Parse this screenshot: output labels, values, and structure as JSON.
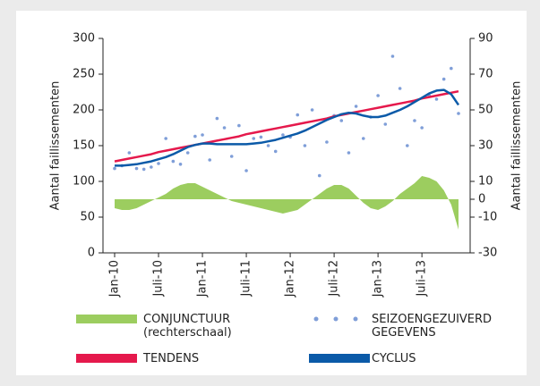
{
  "chart_data": {
    "type": "line",
    "y_label": "Aantal faillissementen",
    "y2_label": "Aantal faillissementen",
    "categories": [
      "Jan-10",
      null,
      null,
      null,
      null,
      null,
      "Juli-10",
      null,
      null,
      null,
      null,
      null,
      "Jan-11",
      null,
      null,
      null,
      null,
      null,
      "Juli-11",
      null,
      null,
      null,
      null,
      null,
      "Jan-12",
      null,
      null,
      null,
      null,
      null,
      "Juli-12",
      null,
      null,
      null,
      null,
      null,
      "Jan-13",
      null,
      null,
      null,
      null,
      null,
      "Juli-13",
      null,
      null,
      null,
      null,
      null
    ],
    "ylim": [
      0,
      300
    ],
    "yticks": [
      0,
      50,
      100,
      150,
      200,
      250,
      300
    ],
    "y2lim": [
      -30,
      90
    ],
    "y2ticks": [
      -30,
      -10,
      0,
      10,
      30,
      50,
      70,
      90
    ],
    "series": [
      {
        "name": "CONJUNCTUUR (rechterschaal)",
        "type": "area",
        "axis": "y2",
        "color": "#9ccd5f",
        "values": [
          -5,
          -6,
          -6,
          -5,
          -3,
          -1,
          1,
          3,
          6,
          8,
          9,
          9,
          7,
          5,
          3,
          1,
          -1,
          -2,
          -3,
          -4,
          -5,
          -6,
          -7,
          -8,
          -7,
          -6,
          -3,
          0,
          3,
          6,
          8,
          8,
          6,
          2,
          -2,
          -5,
          -6,
          -4,
          -1,
          3,
          6,
          9,
          13,
          12,
          10,
          5,
          -3,
          -17
        ]
      },
      {
        "name": "SEIZOENGEZUIVERD GEGEVENS",
        "type": "scatter",
        "color": "#7f9ed8",
        "values": [
          118,
          122,
          140,
          118,
          117,
          120,
          125,
          160,
          128,
          124,
          140,
          163,
          165,
          130,
          188,
          175,
          135,
          178,
          115,
          160,
          162,
          150,
          142,
          165,
          162,
          193,
          150,
          200,
          108,
          155,
          192,
          185,
          140,
          205,
          160,
          190,
          220,
          180,
          275,
          230,
          150,
          185,
          175,
          220,
          215,
          243,
          258,
          195
        ]
      },
      {
        "name": "TENDENS",
        "type": "line",
        "color": "#e5194c",
        "values": [
          128,
          130,
          132,
          134,
          136,
          138,
          141,
          143,
          145,
          147,
          149,
          151,
          153,
          155,
          157,
          159,
          161,
          163,
          166,
          168,
          170,
          172,
          174,
          176,
          178,
          180,
          182,
          184,
          186,
          188,
          191,
          193,
          195,
          197,
          199,
          201,
          203,
          205,
          207,
          209,
          211,
          213,
          216,
          218,
          220,
          222,
          224,
          226
        ]
      },
      {
        "name": "CYCLUS",
        "type": "line",
        "color": "#0b5aa8",
        "values": [
          122,
          122,
          123,
          124,
          126,
          128,
          131,
          134,
          138,
          143,
          148,
          151,
          153,
          153,
          152,
          152,
          152,
          152,
          152,
          153,
          154,
          156,
          158,
          161,
          164,
          167,
          171,
          176,
          181,
          186,
          190,
          194,
          196,
          195,
          192,
          190,
          190,
          192,
          196,
          200,
          205,
          211,
          217,
          223,
          227,
          228,
          222,
          207
        ]
      }
    ]
  }
}
